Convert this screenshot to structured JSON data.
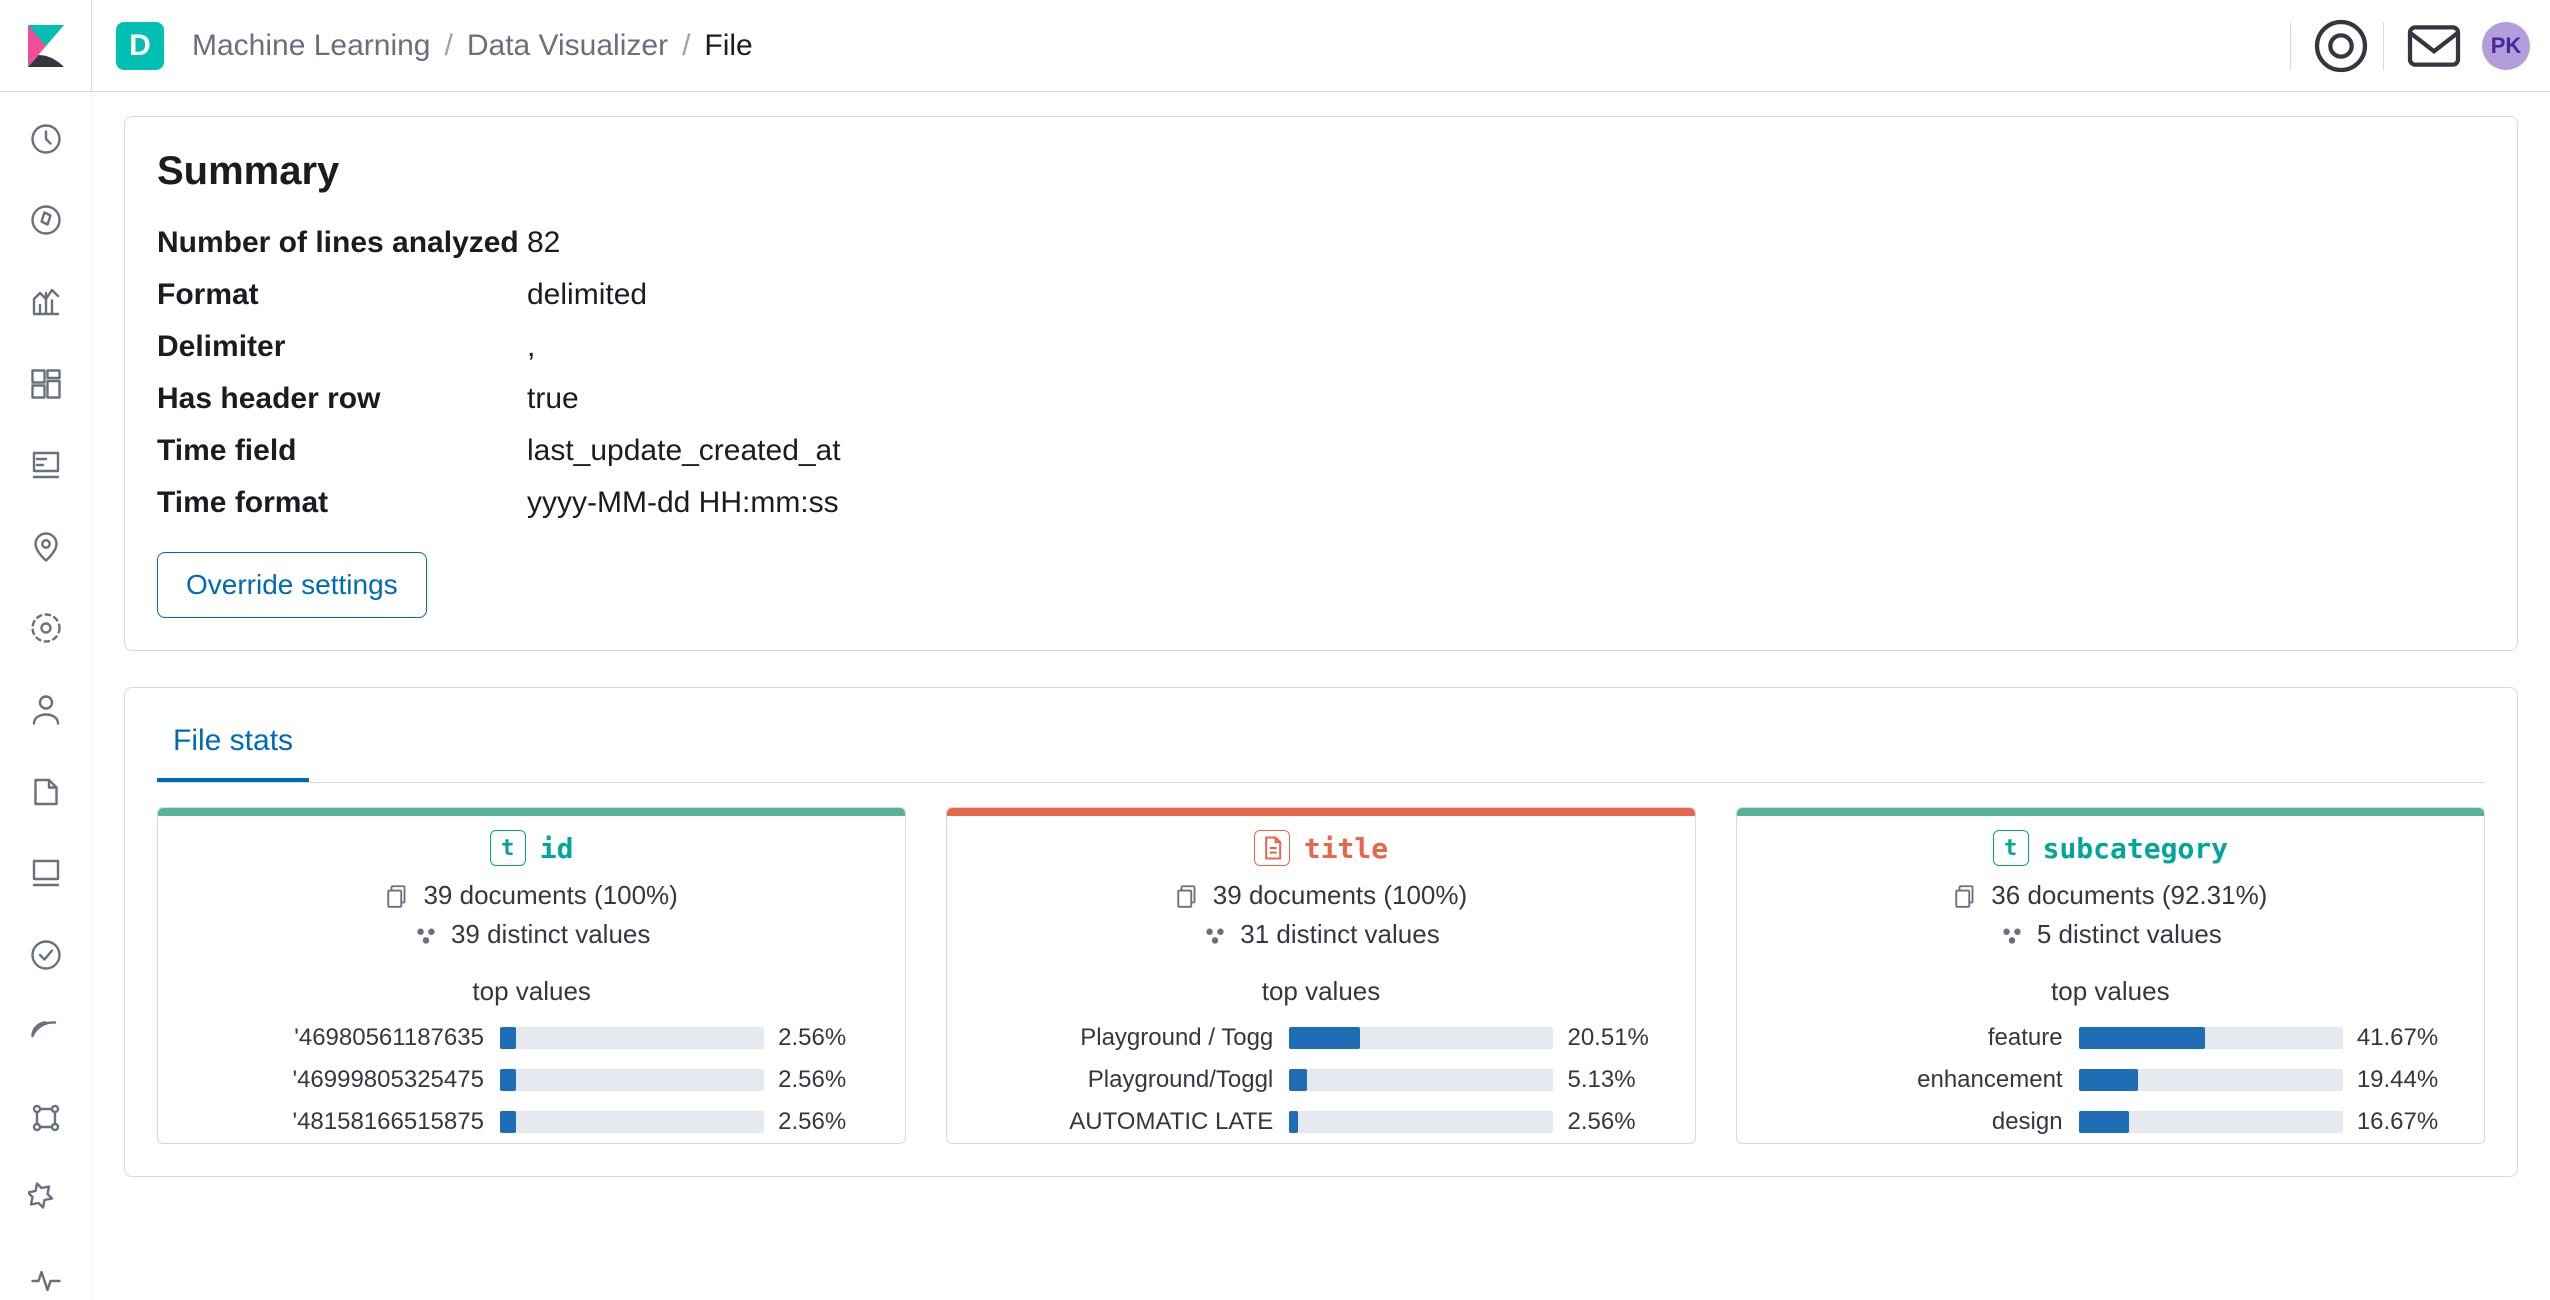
{
  "colors": {
    "accent": "#006bb4",
    "teal": "#00bfb3",
    "border": "#d3dae6",
    "text_muted": "#69707d",
    "bar_fill": "#1f6db5",
    "bar_track": "#e6e9ef",
    "stripe_green": "#54b399",
    "stripe_red": "#e7664c"
  },
  "topbar": {
    "space_letter": "D",
    "breadcrumbs": [
      {
        "label": "Machine Learning",
        "current": false
      },
      {
        "label": "Data Visualizer",
        "current": false
      },
      {
        "label": "File",
        "current": true
      }
    ],
    "avatar_initials": "PK"
  },
  "leftnav_icons": [
    "recent-icon",
    "discover-icon",
    "visualize-icon",
    "dashboard-icon",
    "canvas-icon",
    "maps-icon",
    "ml-icon",
    "infra-icon",
    "logs-icon",
    "apm-icon",
    "uptime-icon",
    "siem-icon",
    "graph-icon",
    "devtools-icon",
    "monitoring-icon"
  ],
  "summary": {
    "title": "Summary",
    "rows": [
      {
        "k": "Number of lines analyzed",
        "v": "82"
      },
      {
        "k": "Format",
        "v": "delimited"
      },
      {
        "k": "Delimiter",
        "v": ","
      },
      {
        "k": "Has header row",
        "v": "true"
      },
      {
        "k": "Time field",
        "v": "last_update_created_at"
      },
      {
        "k": "Time format",
        "v": "yyyy-MM-dd HH:mm:ss"
      }
    ],
    "override_label": "Override settings"
  },
  "stats": {
    "tab_label": "File stats",
    "top_values_label": "top values",
    "cards": [
      {
        "stripe": "#54b399",
        "badge_kind": "t",
        "badge_text": "t",
        "field_name": "id",
        "field_color": "#00a69b",
        "documents": "39 documents (100%)",
        "distinct": "39 distinct values",
        "top_values": [
          {
            "label": "'46980561187635",
            "pct": 2.56
          },
          {
            "label": "'46999805325475",
            "pct": 2.56
          },
          {
            "label": "'48158166515875",
            "pct": 2.56
          }
        ]
      },
      {
        "stripe": "#e7664c",
        "badge_kind": "doc",
        "badge_text": "",
        "field_name": "title",
        "field_color": "#e7664c",
        "documents": "39 documents (100%)",
        "distinct": "31 distinct values",
        "top_values": [
          {
            "label": "Playground / Togg",
            "pct": 20.51
          },
          {
            "label": "Playground/Toggl",
            "pct": 5.13
          },
          {
            "label": "AUTOMATIC LATE",
            "pct": 2.56
          }
        ]
      },
      {
        "stripe": "#54b399",
        "badge_kind": "t",
        "badge_text": "t",
        "field_name": "subcategory",
        "field_color": "#00a69b",
        "documents": "36 documents (92.31%)",
        "distinct": "5 distinct values",
        "top_values": [
          {
            "label": "feature",
            "pct": 41.67
          },
          {
            "label": "enhancement",
            "pct": 19.44
          },
          {
            "label": "design",
            "pct": 16.67
          }
        ]
      }
    ]
  }
}
